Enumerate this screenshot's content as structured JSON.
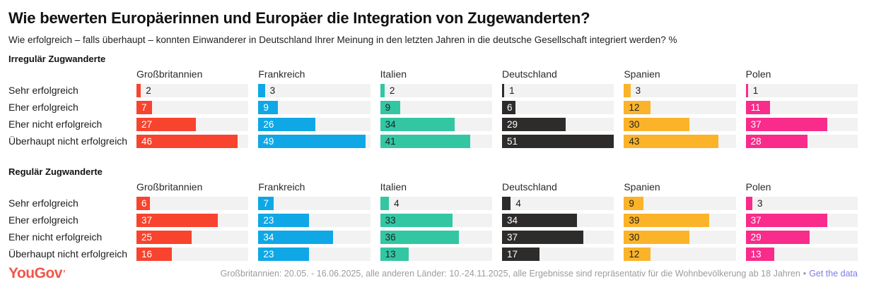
{
  "title": "Wie bewerten Europäerinnen und Europäer die Integration von Zugewanderten?",
  "subtitle": "Wie erfolgreich – falls überhaupt – konnten Einwanderer in Deutschland Ihrer Meinung in den letzten Jahren in die deutsche Gesellschaft integriert werden? %",
  "logo": {
    "text": "YouGov",
    "tick": "’",
    "color": "#f0564a"
  },
  "footer": {
    "note": "Großbritannien: 20.05. - 16.06.2025, alle anderen Länder: 10.-24.11.2025, alle Ergebnisse sind repräsentativ für die Wohnbevölkerung ab 18 Jahren",
    "separator": "•",
    "link": "Get the data",
    "link_color": "#7c7ce8"
  },
  "chart_data": {
    "type": "bar",
    "orientation": "horizontal",
    "xmax": 51,
    "track_color": "#f2f2f2",
    "outside_label_color": "#1d1d1d",
    "row_labels": [
      "Sehr erfolgreich",
      "Eher erfolgreich",
      "Eher nicht erfolgreich",
      "Überhaupt nicht erfolgreich"
    ],
    "countries": [
      {
        "name": "Großbritannien",
        "color": "#f8432e",
        "value_text_color": "#ffffff"
      },
      {
        "name": "Frankreich",
        "color": "#0fa7e6",
        "value_text_color": "#ffffff"
      },
      {
        "name": "Italien",
        "color": "#33c6a3",
        "value_text_color": "#222222"
      },
      {
        "name": "Deutschland",
        "color": "#2e2c2b",
        "value_text_color": "#ffffff"
      },
      {
        "name": "Spanien",
        "color": "#fbb32a",
        "value_text_color": "#222222"
      },
      {
        "name": "Polen",
        "color": "#f92b8b",
        "value_text_color": "#ffffff"
      }
    ],
    "sections": [
      {
        "title": "Irregulär Zugwanderte",
        "series": [
          {
            "name": "Großbritannien",
            "values": [
              2,
              7,
              27,
              46
            ]
          },
          {
            "name": "Frankreich",
            "values": [
              3,
              9,
              26,
              49
            ]
          },
          {
            "name": "Italien",
            "values": [
              2,
              9,
              34,
              41
            ]
          },
          {
            "name": "Deutschland",
            "values": [
              1,
              6,
              29,
              51
            ]
          },
          {
            "name": "Spanien",
            "values": [
              3,
              12,
              30,
              43
            ]
          },
          {
            "name": "Polen",
            "values": [
              1,
              11,
              37,
              28
            ]
          }
        ]
      },
      {
        "title": "Regulär Zugwanderte",
        "series": [
          {
            "name": "Großbritannien",
            "values": [
              6,
              37,
              25,
              16
            ]
          },
          {
            "name": "Frankreich",
            "values": [
              7,
              23,
              34,
              23
            ]
          },
          {
            "name": "Italien",
            "values": [
              4,
              33,
              36,
              13
            ]
          },
          {
            "name": "Deutschland",
            "values": [
              4,
              34,
              37,
              17
            ]
          },
          {
            "name": "Spanien",
            "values": [
              9,
              39,
              30,
              12
            ]
          },
          {
            "name": "Polen",
            "values": [
              3,
              37,
              29,
              13
            ]
          }
        ]
      }
    ]
  }
}
